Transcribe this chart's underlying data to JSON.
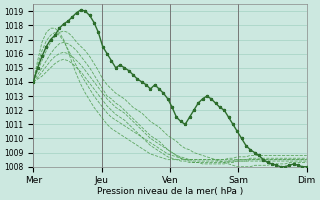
{
  "title": "",
  "xlabel": "Pression niveau de la mer( hPa )",
  "ylabel": "",
  "ylim": [
    1008,
    1019.5
  ],
  "xlim": [
    0,
    96
  ],
  "background_color": "#cce8e0",
  "plot_bg_color": "#cce8e0",
  "grid_color": "#99ccbb",
  "dark_green": "#2d6e2d",
  "light_green": "#4a9a4a",
  "day_labels": [
    "Mer",
    "Jeu",
    "Ven",
    "Sam",
    "Dim"
  ],
  "day_positions": [
    0,
    24,
    48,
    72,
    96
  ],
  "yticks": [
    1008,
    1009,
    1010,
    1011,
    1012,
    1013,
    1014,
    1015,
    1016,
    1017,
    1018,
    1019
  ],
  "series": [
    [
      1014.0,
      1015.0,
      1015.8,
      1016.5,
      1017.0,
      1017.3,
      1017.8,
      1018.1,
      1018.3,
      1018.6,
      1018.9,
      1019.1,
      1019.0,
      1018.7,
      1018.2,
      1017.5,
      1016.5,
      1016.0,
      1015.5,
      1015.0,
      1015.2,
      1015.0,
      1014.8,
      1014.5,
      1014.2,
      1014.0,
      1013.8,
      1013.5,
      1013.8,
      1013.5,
      1013.2,
      1012.8,
      1012.2,
      1011.5,
      1011.2,
      1011.0,
      1011.5,
      1012.0,
      1012.5,
      1012.8,
      1013.0,
      1012.8,
      1012.5,
      1012.2,
      1012.0,
      1011.5,
      1011.0,
      1010.5,
      1010.0,
      1009.5,
      1009.2,
      1009.0,
      1008.8,
      1008.5,
      1008.3,
      1008.2,
      1008.1,
      1008.0,
      1008.0,
      1008.1,
      1008.2,
      1008.1,
      1008.0,
      1008.0
    ],
    [
      1014.0,
      1014.8,
      1015.5,
      1016.2,
      1016.8,
      1017.2,
      1017.5,
      1017.6,
      1017.5,
      1017.2,
      1016.8,
      1016.5,
      1016.2,
      1015.8,
      1015.3,
      1014.8,
      1014.2,
      1013.8,
      1013.5,
      1013.2,
      1013.0,
      1012.8,
      1012.5,
      1012.2,
      1012.0,
      1011.8,
      1011.5,
      1011.2,
      1011.0,
      1010.8,
      1010.5,
      1010.2,
      1010.0,
      1009.8,
      1009.5,
      1009.3,
      1009.2,
      1009.0,
      1008.9,
      1008.8,
      1008.7,
      1008.6,
      1008.5,
      1008.4,
      1008.3,
      1008.2,
      1008.1,
      1008.0,
      1008.0,
      1008.0,
      1008.0,
      1008.1,
      1008.1,
      1008.1,
      1008.1,
      1008.2,
      1008.2,
      1008.2,
      1008.2,
      1008.3,
      1008.3,
      1008.3,
      1008.3,
      1008.3
    ],
    [
      1014.0,
      1014.5,
      1015.0,
      1015.5,
      1016.0,
      1016.4,
      1016.7,
      1016.8,
      1016.7,
      1016.5,
      1016.2,
      1015.8,
      1015.4,
      1015.0,
      1014.5,
      1014.0,
      1013.5,
      1013.0,
      1012.8,
      1012.5,
      1012.3,
      1012.0,
      1011.7,
      1011.4,
      1011.1,
      1010.8,
      1010.5,
      1010.2,
      1010.0,
      1009.8,
      1009.5,
      1009.2,
      1009.0,
      1008.8,
      1008.6,
      1008.5,
      1008.4,
      1008.3,
      1008.3,
      1008.2,
      1008.2,
      1008.2,
      1008.2,
      1008.2,
      1008.2,
      1008.3,
      1008.3,
      1008.4,
      1008.4,
      1008.4,
      1008.5,
      1008.5,
      1008.5,
      1008.5,
      1008.5,
      1008.5,
      1008.5,
      1008.5,
      1008.5,
      1008.5,
      1008.5,
      1008.5,
      1008.5,
      1008.5
    ],
    [
      1014.0,
      1014.3,
      1014.7,
      1015.1,
      1015.5,
      1015.8,
      1016.0,
      1016.1,
      1016.0,
      1015.8,
      1015.5,
      1015.2,
      1014.8,
      1014.4,
      1014.0,
      1013.6,
      1013.2,
      1012.8,
      1012.5,
      1012.2,
      1012.0,
      1011.8,
      1011.5,
      1011.2,
      1010.9,
      1010.6,
      1010.3,
      1010.0,
      1009.8,
      1009.6,
      1009.4,
      1009.2,
      1009.0,
      1008.8,
      1008.7,
      1008.6,
      1008.5,
      1008.5,
      1008.5,
      1008.5,
      1008.5,
      1008.5,
      1008.5,
      1008.5,
      1008.5,
      1008.6,
      1008.6,
      1008.7,
      1008.7,
      1008.7,
      1008.8,
      1008.8,
      1008.8,
      1008.8,
      1008.8,
      1008.8,
      1008.8,
      1008.8,
      1008.8,
      1008.8,
      1008.8,
      1008.8,
      1008.8,
      1008.8
    ],
    [
      1014.0,
      1014.2,
      1014.4,
      1014.7,
      1015.0,
      1015.3,
      1015.5,
      1015.6,
      1015.5,
      1015.3,
      1015.0,
      1014.7,
      1014.3,
      1013.9,
      1013.5,
      1013.1,
      1012.7,
      1012.3,
      1012.0,
      1011.7,
      1011.5,
      1011.3,
      1011.0,
      1010.7,
      1010.4,
      1010.1,
      1009.8,
      1009.5,
      1009.3,
      1009.1,
      1008.9,
      1008.7,
      1008.6,
      1008.5,
      1008.4,
      1008.4,
      1008.3,
      1008.3,
      1008.3,
      1008.3,
      1008.3,
      1008.3,
      1008.3,
      1008.3,
      1008.3,
      1008.4,
      1008.4,
      1008.5,
      1008.5,
      1008.5,
      1008.6,
      1008.6,
      1008.6,
      1008.6,
      1008.6,
      1008.6,
      1008.6,
      1008.6,
      1008.6,
      1008.6,
      1008.6,
      1008.6,
      1008.6,
      1008.6
    ],
    [
      1014.0,
      1015.2,
      1016.2,
      1016.9,
      1017.3,
      1017.5,
      1017.3,
      1016.9,
      1016.3,
      1015.7,
      1015.1,
      1014.5,
      1014.0,
      1013.5,
      1013.0,
      1012.6,
      1012.2,
      1011.8,
      1011.5,
      1011.3,
      1011.1,
      1010.9,
      1010.7,
      1010.5,
      1010.3,
      1010.1,
      1009.9,
      1009.7,
      1009.5,
      1009.3,
      1009.1,
      1008.9,
      1008.8,
      1008.7,
      1008.6,
      1008.5,
      1008.5,
      1008.4,
      1008.4,
      1008.4,
      1008.4,
      1008.4,
      1008.4,
      1008.4,
      1008.4,
      1008.4,
      1008.4,
      1008.4,
      1008.4,
      1008.4,
      1008.4,
      1008.4,
      1008.4,
      1008.4,
      1008.4,
      1008.4,
      1008.4,
      1008.4,
      1008.4,
      1008.4,
      1008.4,
      1008.4,
      1008.4,
      1008.4
    ],
    [
      1014.0,
      1015.5,
      1016.8,
      1017.5,
      1017.8,
      1017.8,
      1017.5,
      1017.0,
      1016.2,
      1015.3,
      1014.5,
      1013.8,
      1013.2,
      1012.7,
      1012.2,
      1011.8,
      1011.4,
      1011.0,
      1010.7,
      1010.5,
      1010.3,
      1010.1,
      1009.9,
      1009.7,
      1009.5,
      1009.3,
      1009.1,
      1008.9,
      1008.8,
      1008.7,
      1008.6,
      1008.5,
      1008.5,
      1008.5,
      1008.5,
      1008.5,
      1008.5,
      1008.5,
      1008.5,
      1008.5,
      1008.5,
      1008.5,
      1008.5,
      1008.5,
      1008.5,
      1008.5,
      1008.5,
      1008.5,
      1008.5,
      1008.5,
      1008.5,
      1008.5,
      1008.5,
      1008.5,
      1008.5,
      1008.5,
      1008.5,
      1008.5,
      1008.5,
      1008.5,
      1008.5,
      1008.5,
      1008.5,
      1008.5
    ]
  ]
}
